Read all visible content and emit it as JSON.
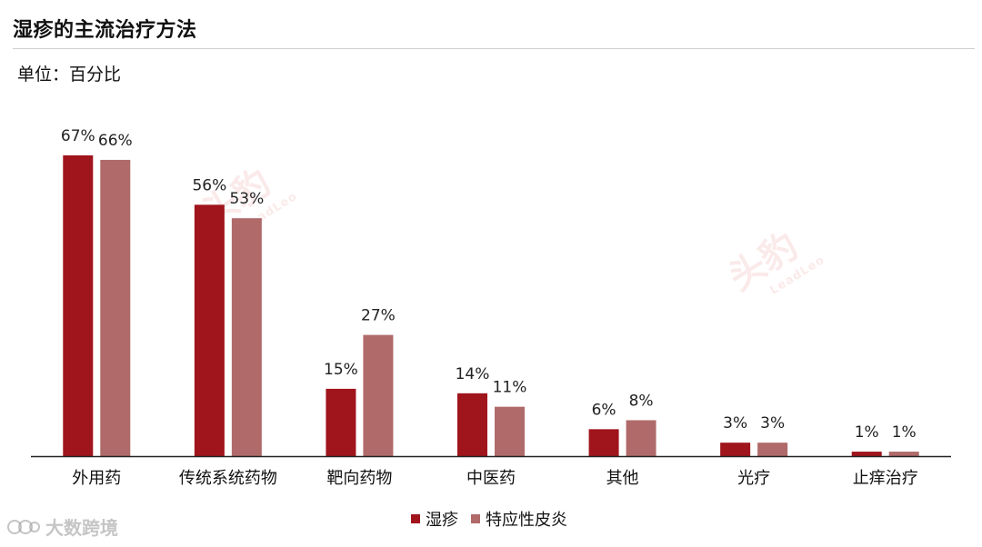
{
  "header": {
    "title": "湿疹的主流治疗方法",
    "unit": "单位：百分比"
  },
  "watermarks": {
    "brand_cn": "头豹",
    "brand_en": "LeadLeo"
  },
  "footer": {
    "logo_text": "大数跨境"
  },
  "colors": {
    "eczema": "#a0141c",
    "atopic": "#b06a6a",
    "axis": "#222222"
  },
  "chart_data": {
    "type": "bar",
    "categories": [
      "外用药",
      "传统系统药物",
      "靶向药物",
      "中医药",
      "其他",
      "光疗",
      "止痒治疗"
    ],
    "series": [
      {
        "name": "湿疹",
        "values": [
          67,
          56,
          15,
          14,
          6,
          3,
          1
        ],
        "labels": [
          "67%",
          "56%",
          "15%",
          "14%",
          "6%",
          "3%",
          "1%"
        ]
      },
      {
        "name": "特应性皮炎",
        "values": [
          66,
          53,
          27,
          11,
          8,
          3,
          1
        ],
        "labels": [
          "66%",
          "53%",
          "27%",
          "11%",
          "8%",
          "3%",
          "1%"
        ]
      }
    ],
    "ylim": [
      0,
      67
    ],
    "grid": false,
    "legend": "bottom"
  }
}
